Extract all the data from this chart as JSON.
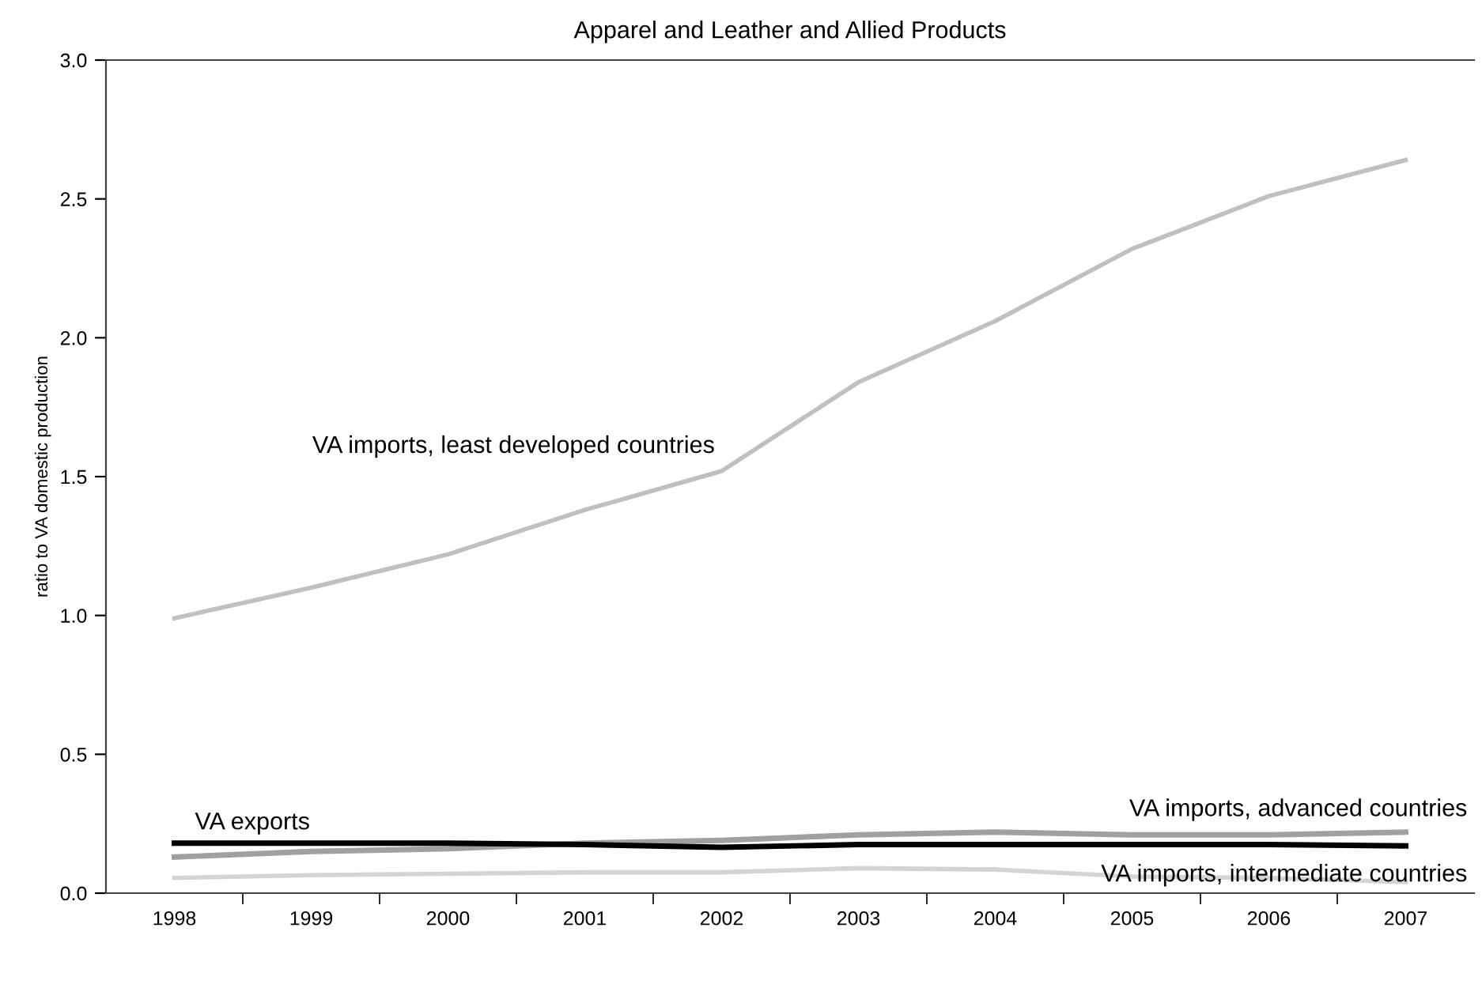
{
  "chart_data": {
    "type": "line",
    "title": "Apparel and Leather and Allied Products",
    "ylabel": "ratio to VA domestic production",
    "categories": [
      "1998",
      "1999",
      "2000",
      "2001",
      "2002",
      "2003",
      "2004",
      "2005",
      "2006",
      "2007"
    ],
    "series": [
      {
        "name": "VA imports, least developed countries",
        "color": "#c0c0c0",
        "values": [
          0.99,
          1.1,
          1.22,
          1.38,
          1.52,
          1.84,
          2.06,
          2.32,
          2.51,
          2.64
        ]
      },
      {
        "name": "VA imports, advanced countries",
        "color": "#a0a0a0",
        "values": [
          0.13,
          0.15,
          0.16,
          0.18,
          0.19,
          0.21,
          0.22,
          0.21,
          0.21,
          0.22
        ]
      },
      {
        "name": "VA exports",
        "color": "#000000",
        "values": [
          0.18,
          0.18,
          0.18,
          0.175,
          0.165,
          0.175,
          0.175,
          0.175,
          0.175,
          0.17
        ]
      },
      {
        "name": "VA imports, intermediate countries",
        "color": "#d4d4d4",
        "values": [
          0.055,
          0.065,
          0.07,
          0.075,
          0.075,
          0.09,
          0.085,
          0.06,
          0.055,
          0.04
        ]
      }
    ],
    "ylim": [
      0,
      3.0
    ],
    "yticks": [
      {
        "value": 0,
        "label": "0.0"
      },
      {
        "value": 0.5,
        "label": "0.5"
      },
      {
        "value": 1.0,
        "label": "1.0"
      },
      {
        "value": 1.5,
        "label": "1.5"
      },
      {
        "value": 2.0,
        "label": "2.0"
      },
      {
        "value": 2.5,
        "label": "2.5"
      },
      {
        "value": 3.0,
        "label": "3.0"
      }
    ],
    "grid": false,
    "legend": false,
    "marker": "none",
    "line_style": "solid"
  }
}
